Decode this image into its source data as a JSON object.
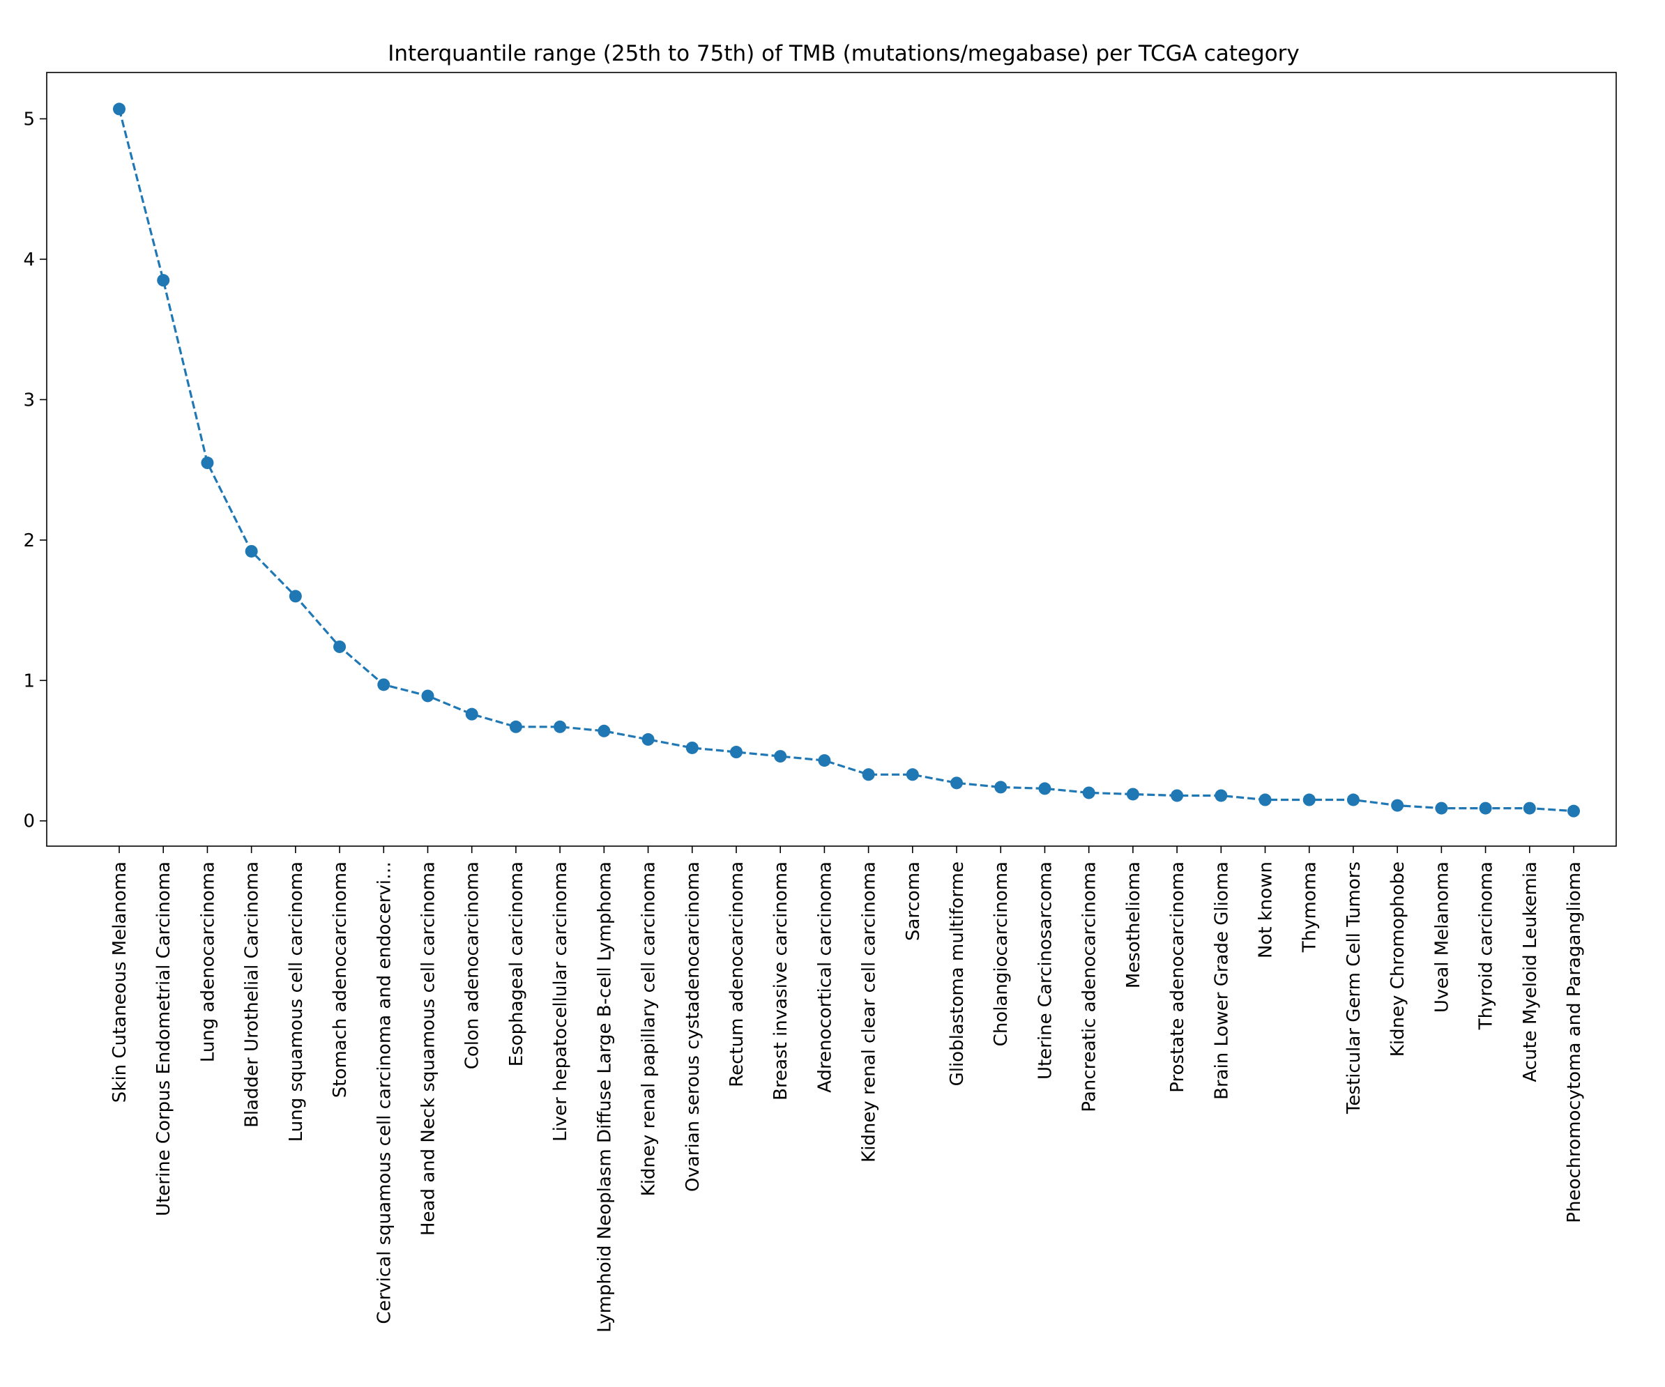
{
  "chart_data": {
    "type": "line",
    "title": "Interquantile range (25th to 75th) of TMB (mutations/megabase) per TCGA category",
    "xlabel": "",
    "ylabel": "",
    "ylim": [
      -0.18,
      5.33
    ],
    "yticks": [
      "0",
      "1",
      "2",
      "3",
      "4",
      "5"
    ],
    "grid": false,
    "line_style": "dashed",
    "marker": "circle",
    "color": "#1f77b4",
    "categories": [
      "Skin Cutaneous Melanoma",
      "Uterine Corpus Endometrial Carcinoma",
      "Lung adenocarcinoma",
      "Bladder Urothelial Carcinoma",
      "Lung squamous cell carcinoma",
      "Stomach adenocarcinoma",
      "Cervical squamous cell carcinoma and endocervi…",
      "Head and Neck squamous cell carcinoma",
      "Colon adenocarcinoma",
      "Esophageal carcinoma",
      "Liver hepatocellular carcinoma",
      "Lymphoid Neoplasm Diffuse Large B-cell Lymphoma",
      "Kidney renal papillary cell carcinoma",
      "Ovarian serous cystadenocarcinoma",
      "Rectum adenocarcinoma",
      "Breast invasive carcinoma",
      "Adrenocortical carcinoma",
      "Kidney renal clear cell carcinoma",
      "Sarcoma",
      "Glioblastoma multiforme",
      "Cholangiocarcinoma",
      "Uterine Carcinosarcoma",
      "Pancreatic adenocarcinoma",
      "Mesothelioma",
      "Prostate adenocarcinoma",
      "Brain Lower Grade Glioma",
      "Not known",
      "Thymoma",
      "Testicular Germ Cell Tumors",
      "Kidney Chromophobe",
      "Uveal Melanoma",
      "Thyroid carcinoma",
      "Acute Myeloid Leukemia",
      "Pheochromocytoma and Paraganglioma"
    ],
    "values": [
      5.07,
      3.85,
      2.55,
      1.92,
      1.6,
      1.24,
      0.97,
      0.89,
      0.76,
      0.67,
      0.67,
      0.64,
      0.58,
      0.52,
      0.49,
      0.46,
      0.43,
      0.33,
      0.33,
      0.27,
      0.24,
      0.23,
      0.2,
      0.19,
      0.18,
      0.18,
      0.15,
      0.15,
      0.15,
      0.11,
      0.09,
      0.09,
      0.09,
      0.07
    ]
  }
}
